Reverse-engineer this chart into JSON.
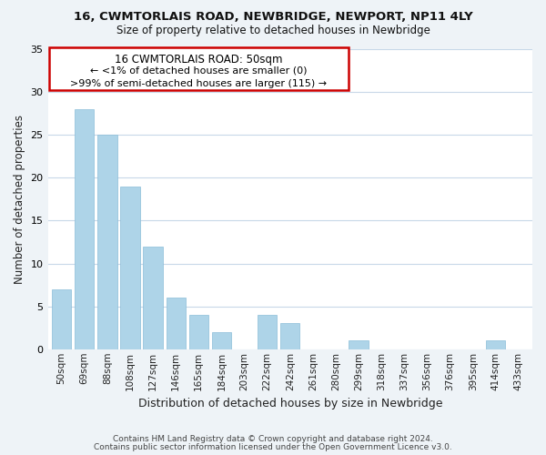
{
  "title": "16, CWMTORLAIS ROAD, NEWBRIDGE, NEWPORT, NP11 4LY",
  "subtitle": "Size of property relative to detached houses in Newbridge",
  "xlabel": "Distribution of detached houses by size in Newbridge",
  "ylabel": "Number of detached properties",
  "categories": [
    "50sqm",
    "69sqm",
    "88sqm",
    "108sqm",
    "127sqm",
    "146sqm",
    "165sqm",
    "184sqm",
    "203sqm",
    "222sqm",
    "242sqm",
    "261sqm",
    "280sqm",
    "299sqm",
    "318sqm",
    "337sqm",
    "356sqm",
    "376sqm",
    "395sqm",
    "414sqm",
    "433sqm"
  ],
  "values": [
    7,
    28,
    25,
    19,
    12,
    6,
    4,
    2,
    0,
    4,
    3,
    0,
    0,
    1,
    0,
    0,
    0,
    0,
    0,
    1,
    0
  ],
  "bar_color": "#aed4e8",
  "ylim": [
    0,
    35
  ],
  "yticks": [
    0,
    5,
    10,
    15,
    20,
    25,
    30,
    35
  ],
  "annotation_title": "16 CWMTORLAIS ROAD: 50sqm",
  "annotation_line1": "← <1% of detached houses are smaller (0)",
  "annotation_line2": ">99% of semi-detached houses are larger (115) →",
  "annotation_box_color": "#ffffff",
  "annotation_box_edge_color": "#cc0000",
  "footnote1": "Contains HM Land Registry data © Crown copyright and database right 2024.",
  "footnote2": "Contains public sector information licensed under the Open Government Licence v3.0.",
  "background_color": "#eef3f7",
  "plot_background_color": "#ffffff",
  "grid_color": "#c8d8e8"
}
